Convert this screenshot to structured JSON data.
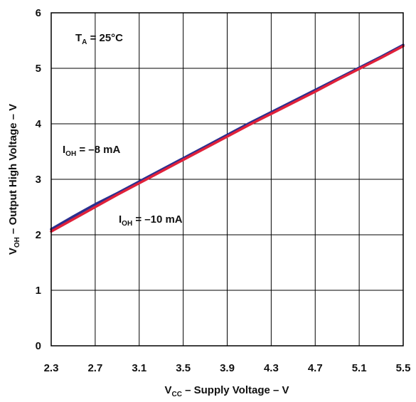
{
  "chart_data": {
    "type": "line",
    "xlabel": {
      "main": "V",
      "sub": "CC",
      "rest": " – Supply Voltage – V"
    },
    "ylabel": {
      "main": "V",
      "sub": "OH",
      "rest": " – Output High Voltage – V"
    },
    "xlim": [
      2.3,
      5.5
    ],
    "ylim": [
      0,
      6
    ],
    "x_ticks": [
      "2.3",
      "2.7",
      "3.1",
      "3.5",
      "3.9",
      "4.3",
      "4.7",
      "5.1",
      "5.5"
    ],
    "y_ticks": [
      "0",
      "1",
      "2",
      "3",
      "4",
      "5",
      "6"
    ],
    "grid": true,
    "colors": {
      "series1": "#2b2f8f",
      "series2": "#e0213a",
      "grid": "#000000"
    },
    "annotations": {
      "temp": {
        "main": "T",
        "sub": "A",
        "rest": " = 25°C"
      },
      "s1": {
        "main": "I",
        "sub": "OH",
        "rest": " = –8 mA"
      },
      "s2": {
        "main": "I",
        "sub": "OH",
        "rest": " = –10 mA"
      }
    },
    "series": [
      {
        "name": "IOH = –8 mA",
        "x": [
          2.3,
          2.5,
          2.6,
          2.7,
          2.9,
          3.1,
          3.3,
          3.5,
          3.7,
          3.9,
          4.1,
          4.3,
          4.5,
          4.7,
          4.9,
          5.1,
          5.3,
          5.5
        ],
        "y": [
          2.1,
          2.33,
          2.44,
          2.55,
          2.75,
          2.96,
          3.17,
          3.38,
          3.59,
          3.8,
          4.01,
          4.21,
          4.41,
          4.61,
          4.81,
          5.01,
          5.21,
          5.42
        ]
      },
      {
        "name": "IOH = –10 mA",
        "x": [
          2.3,
          2.5,
          2.6,
          2.7,
          2.9,
          3.1,
          3.3,
          3.5,
          3.7,
          3.9,
          4.1,
          4.3,
          4.5,
          4.7,
          4.9,
          5.1,
          5.3,
          5.5
        ],
        "y": [
          2.06,
          2.28,
          2.39,
          2.5,
          2.72,
          2.93,
          3.14,
          3.35,
          3.56,
          3.77,
          3.98,
          4.18,
          4.38,
          4.58,
          4.79,
          4.99,
          5.19,
          5.4
        ]
      }
    ]
  }
}
